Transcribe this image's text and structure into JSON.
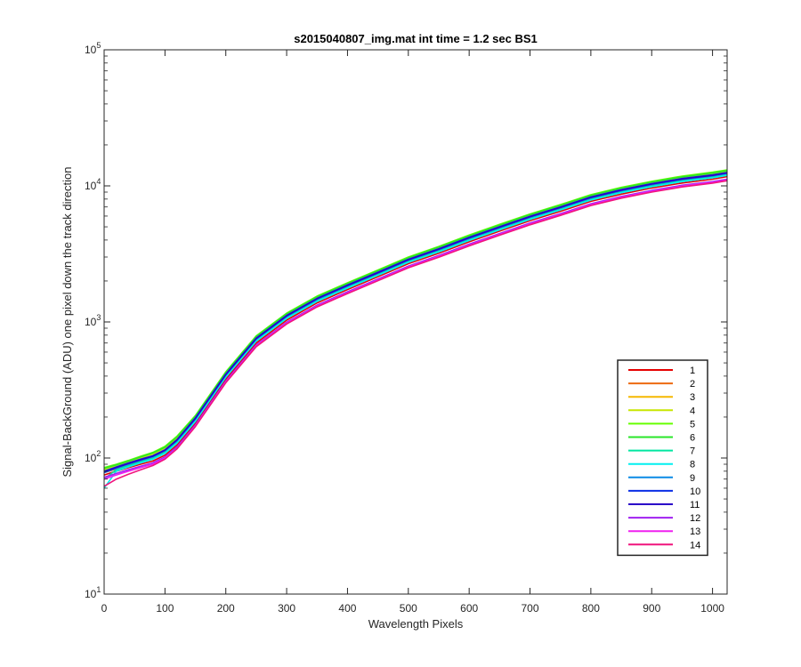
{
  "chart_data": {
    "type": "line",
    "title": "s2015040807_img.mat int time = 1.2 sec   BS1",
    "xlabel": "Wavelength Pixels",
    "ylabel": "Signal-BackGround (ADU) one pixel down the track direction",
    "xlim": [
      0,
      1024
    ],
    "ylim": [
      10,
      100000
    ],
    "yscale": "log",
    "xticks": [
      "0",
      "100",
      "200",
      "300",
      "400",
      "500",
      "600",
      "700",
      "800",
      "900",
      "1000"
    ],
    "yticks": [
      {
        "base": "10",
        "exp": "1"
      },
      {
        "base": "10",
        "exp": "2"
      },
      {
        "base": "10",
        "exp": "3"
      },
      {
        "base": "10",
        "exp": "4"
      },
      {
        "base": "10",
        "exp": "5"
      }
    ],
    "grid": false,
    "legend_position": "lower-right",
    "x": [
      0,
      20,
      40,
      60,
      80,
      100,
      120,
      150,
      200,
      250,
      300,
      350,
      400,
      450,
      500,
      550,
      600,
      650,
      700,
      750,
      800,
      850,
      900,
      950,
      1000,
      1024
    ],
    "series": [
      {
        "name": "1",
        "color": "#e60000",
        "values": [
          75,
          80,
          85,
          90,
          95,
          105,
          125,
          180,
          380,
          700,
          1030,
          1380,
          1730,
          2150,
          2680,
          3200,
          3880,
          4650,
          5550,
          6500,
          7700,
          8700,
          9650,
          10500,
          11200,
          11700
        ]
      },
      {
        "name": "2",
        "color": "#ed6a10",
        "values": [
          78,
          83,
          88,
          93,
          99,
          110,
          130,
          188,
          395,
          725,
          1065,
          1420,
          1780,
          2210,
          2750,
          3290,
          3990,
          4780,
          5700,
          6680,
          7900,
          8950,
          9900,
          10800,
          11500,
          12000
        ]
      },
      {
        "name": "3",
        "color": "#f5b800",
        "values": [
          80,
          85,
          90,
          96,
          102,
          113,
          134,
          193,
          405,
          745,
          1095,
          1460,
          1830,
          2270,
          2830,
          3380,
          4100,
          4910,
          5860,
          6860,
          8120,
          9200,
          10180,
          11100,
          11800,
          12300
        ]
      },
      {
        "name": "4",
        "color": "#c8e600",
        "values": [
          82,
          88,
          94,
          100,
          107,
          118,
          140,
          200,
          420,
          770,
          1130,
          1510,
          1890,
          2350,
          2920,
          3500,
          4240,
          5080,
          6060,
          7100,
          8400,
          9500,
          10500,
          11500,
          12200,
          12700
        ]
      },
      {
        "name": "5",
        "color": "#66ff00",
        "values": [
          85,
          90,
          96,
          103,
          110,
          122,
          145,
          205,
          430,
          790,
          1160,
          1550,
          1940,
          2410,
          3000,
          3590,
          4350,
          5210,
          6220,
          7290,
          8620,
          9760,
          10800,
          11800,
          12600,
          13100
        ]
      },
      {
        "name": "6",
        "color": "#29e629",
        "values": [
          84,
          89,
          95,
          102,
          109,
          120,
          143,
          203,
          425,
          782,
          1148,
          1533,
          1920,
          2385,
          2965,
          3550,
          4300,
          5150,
          6150,
          7200,
          8520,
          9650,
          10680,
          11650,
          12450,
          12950
        ]
      },
      {
        "name": "7",
        "color": "#00e6a0",
        "values": [
          70,
          82,
          88,
          94,
          100,
          110,
          132,
          190,
          400,
          735,
          1080,
          1442,
          1805,
          2240,
          2790,
          3335,
          4040,
          4840,
          5780,
          6770,
          8010,
          9070,
          10040,
          10950,
          11650,
          12150
        ]
      },
      {
        "name": "8",
        "color": "#00f0f0",
        "values": [
          60,
          80,
          86,
          92,
          98,
          108,
          129,
          186,
          392,
          722,
          1060,
          1415,
          1772,
          2200,
          2740,
          3275,
          3970,
          4750,
          5670,
          6650,
          7860,
          8900,
          9850,
          10750,
          11450,
          11950
        ]
      },
      {
        "name": "9",
        "color": "#0a8ae6",
        "values": [
          78,
          84,
          90,
          96,
          102,
          113,
          134,
          193,
          406,
          747,
          1097,
          1464,
          1834,
          2277,
          2836,
          3390,
          4110,
          4920,
          5870,
          6880,
          8140,
          9210,
          10200,
          11120,
          11830,
          12330
        ]
      },
      {
        "name": "10",
        "color": "#0a2de6",
        "values": [
          80,
          86,
          92,
          98,
          104,
          115,
          137,
          197,
          414,
          762,
          1118,
          1493,
          1870,
          2322,
          2890,
          3456,
          4190,
          5015,
          5985,
          7015,
          8300,
          9390,
          10400,
          11330,
          12050,
          12550
        ]
      },
      {
        "name": "11",
        "color": "#2a00c8",
        "values": [
          79,
          85,
          91,
          97,
          103,
          114,
          136,
          195,
          410,
          755,
          1108,
          1480,
          1853,
          2300,
          2865,
          3425,
          4150,
          4970,
          5930,
          6950,
          8220,
          9300,
          10300,
          11230,
          11950,
          12450
        ]
      },
      {
        "name": "12",
        "color": "#a020f0",
        "values": [
          72,
          77,
          82,
          87,
          92,
          102,
          121,
          175,
          368,
          678,
          995,
          1330,
          1665,
          2067,
          2575,
          3078,
          3730,
          4465,
          5330,
          6245,
          7390,
          8365,
          9260,
          10100,
          10750,
          11200
        ]
      },
      {
        "name": "13",
        "color": "#f020f0",
        "values": [
          70,
          75,
          80,
          85,
          90,
          100,
          118,
          172,
          362,
          667,
          980,
          1308,
          1638,
          2034,
          2535,
          3030,
          3672,
          4395,
          5245,
          6150,
          7275,
          8235,
          9120,
          9950,
          10600,
          11050
        ]
      },
      {
        "name": "14",
        "color": "#f0147d",
        "values": [
          62,
          70,
          76,
          82,
          88,
          98,
          117,
          170,
          357,
          658,
          966,
          1290,
          1616,
          2006,
          2500,
          2988,
          3621,
          4335,
          5175,
          6065,
          7175,
          8125,
          9000,
          9820,
          10470,
          10920
        ]
      }
    ]
  }
}
